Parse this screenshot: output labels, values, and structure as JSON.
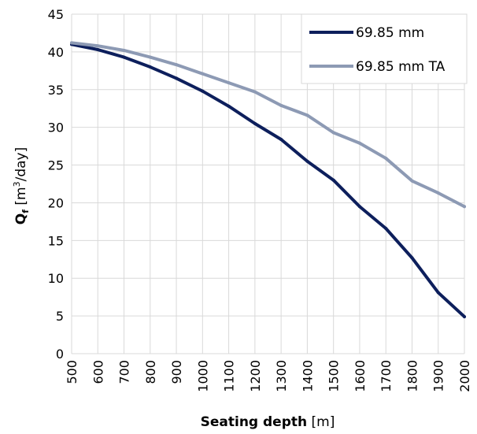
{
  "chart_data": {
    "type": "line",
    "x": [
      500,
      600,
      700,
      800,
      900,
      1000,
      1100,
      1200,
      1300,
      1400,
      1500,
      1600,
      1700,
      1800,
      1900,
      2000
    ],
    "series": [
      {
        "name": "69.85 mm",
        "color": "#0d1f5c",
        "values": [
          41.0,
          40.3,
          39.3,
          38.0,
          36.5,
          34.8,
          32.8,
          30.5,
          28.4,
          25.5,
          23.0,
          19.5,
          16.6,
          12.7,
          8.1,
          4.9
        ]
      },
      {
        "name": "69.85 mm TA",
        "color": "#8d9ab4",
        "values": [
          41.2,
          40.8,
          40.2,
          39.3,
          38.3,
          37.1,
          35.9,
          34.7,
          32.9,
          31.6,
          29.3,
          27.9,
          25.9,
          22.9,
          21.3,
          19.5
        ]
      }
    ],
    "xticks": [
      "500",
      "600",
      "700",
      "800",
      "900",
      "1000",
      "1100",
      "1200",
      "1300",
      "1400",
      "1500",
      "1600",
      "1700",
      "1800",
      "1900",
      "2000"
    ],
    "yticks": [
      "0",
      "5",
      "10",
      "15",
      "20",
      "25",
      "30",
      "35",
      "40",
      "45"
    ],
    "xlim": [
      500,
      2000
    ],
    "ylim": [
      0,
      45
    ],
    "xlabel": {
      "bold": "Seating depth",
      "unit": " [m]"
    },
    "ylabel": {
      "bold": "Q",
      "sub": "f",
      "unit_pre": " [m",
      "sup": "3",
      "unit_post": "/day]"
    },
    "grid": true,
    "legend_position": "top-right"
  }
}
